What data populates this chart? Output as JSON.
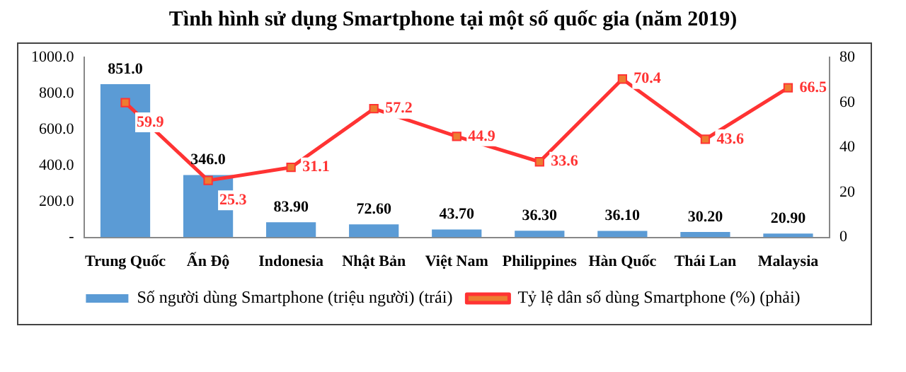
{
  "chart_data": {
    "type": "bar",
    "title": "Tình hình sử dụng Smartphone tại một số quốc gia (năm 2019)",
    "categories": [
      "Trung Quốc",
      "Ấn Độ",
      "Indonesia",
      "Nhật Bản",
      "Việt Nam",
      "Philippines",
      "Hàn Quốc",
      "Thái Lan",
      "Malaysia"
    ],
    "series": [
      {
        "name": "Số người dùng Smartphone (triệu người) (trái)",
        "color": "#5b9bd5",
        "values": [
          851.0,
          346.0,
          83.9,
          72.6,
          43.7,
          36.3,
          36.1,
          30.2,
          20.9
        ],
        "value_labels": [
          "851.0",
          "346.0",
          "83.90",
          "72.60",
          "43.70",
          "36.30",
          "36.10",
          "30.20",
          "20.90"
        ]
      },
      {
        "name": "Tỷ lệ dân số dùng Smartphone (%) (phải)",
        "type": "line",
        "axis": "y2",
        "color": "#ff3333",
        "marker": "square",
        "values": [
          59.9,
          25.3,
          31.1,
          57.2,
          44.9,
          33.6,
          70.4,
          43.6,
          66.5
        ],
        "value_labels": [
          "59.9",
          "25.3",
          "31.1",
          "57.2",
          "44.9",
          "33.6",
          "70.4",
          "43.6",
          "66.5"
        ]
      }
    ],
    "ylim": [
      0,
      1000
    ],
    "yticks": [
      {
        "value": 0,
        "label": "-"
      },
      {
        "value": 200,
        "label": "200.0"
      },
      {
        "value": 400,
        "label": "400.0"
      },
      {
        "value": 600,
        "label": "600.0"
      },
      {
        "value": 800,
        "label": "800.0"
      },
      {
        "value": 1000,
        "label": "1000.0"
      }
    ],
    "y2lim": [
      0,
      80
    ],
    "y2ticks": [
      0,
      20,
      40,
      60,
      80
    ],
    "grid": false,
    "legend": "bottom"
  }
}
